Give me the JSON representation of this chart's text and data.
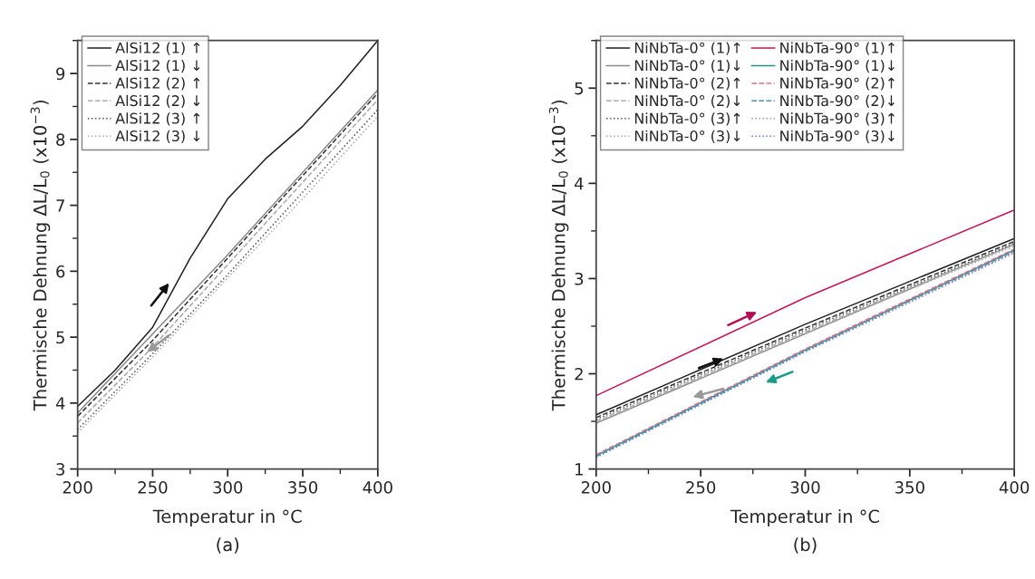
{
  "chart_data": [
    {
      "type": "line",
      "xlabel": "Temperatur in °C",
      "ylabel": "Thermische Dehnung ΔL/L$_{0}$ (x10$^{−3}$)",
      "xlim": [
        200,
        400
      ],
      "ylim": [
        3,
        9.5
      ],
      "xticks": [
        200,
        250,
        300,
        350,
        400
      ],
      "yticks": [
        3,
        4,
        5,
        6,
        7,
        8,
        9
      ],
      "legend": "top left",
      "grid": false,
      "annotations": [
        "(a)"
      ],
      "series": [
        {
          "name": "AlSi12 (1) ↑",
          "color": "#222222",
          "line_style": "solid",
          "x": [
            200,
            225,
            250,
            275,
            300,
            325,
            350,
            375,
            400
          ],
          "values": [
            3.95,
            4.5,
            5.15,
            6.2,
            7.1,
            7.7,
            8.2,
            8.82,
            9.5
          ]
        },
        {
          "name": "AlSi12 (1) ↓",
          "color": "#8a8a8a",
          "line_style": "solid",
          "x": [
            200,
            250,
            300,
            350,
            400
          ],
          "values": [
            3.85,
            5.05,
            6.25,
            7.5,
            8.75
          ]
        },
        {
          "name": "AlSi12 (2) ↑",
          "color": "#333333",
          "line_style": "dashed",
          "x": [
            200,
            250,
            300,
            350,
            400
          ],
          "values": [
            3.8,
            4.95,
            6.2,
            7.45,
            8.7
          ]
        },
        {
          "name": "AlSi12 (2) ↓",
          "color": "#aaaaaa",
          "line_style": "dashed",
          "x": [
            200,
            250,
            300,
            350,
            400
          ],
          "values": [
            3.7,
            4.85,
            6.1,
            7.35,
            8.6
          ]
        },
        {
          "name": "AlSi12 (3) ↑",
          "color": "#555555",
          "line_style": "dotted",
          "x": [
            200,
            250,
            300,
            350,
            400
          ],
          "values": [
            3.6,
            4.75,
            5.95,
            7.2,
            8.45
          ]
        },
        {
          "name": "AlSi12 (3) ↓",
          "color": "#aaaaaa",
          "line_style": "dotted",
          "x": [
            200,
            250,
            300,
            350,
            400
          ],
          "values": [
            3.55,
            4.7,
            5.9,
            7.1,
            8.35
          ]
        }
      ]
    },
    {
      "type": "line",
      "xlabel": "Temperatur in °C",
      "ylabel": "Thermische Dehnung ΔL/L$_{0}$ (x10$^{−3}$)",
      "xlim": [
        200,
        400
      ],
      "ylim": [
        1,
        5.5
      ],
      "xticks": [
        200,
        250,
        300,
        350,
        400
      ],
      "yticks": [
        1,
        2,
        3,
        4,
        5
      ],
      "legend": "top left",
      "grid": false,
      "annotations": [
        "(b)"
      ],
      "series": [
        {
          "name": "NiNbTa-0° (1)↑",
          "color": "#222222",
          "line_style": "solid",
          "x": [
            200,
            300,
            400
          ],
          "values": [
            1.57,
            2.52,
            3.42
          ]
        },
        {
          "name": "NiNbTa-0° (1)↓",
          "color": "#8a8a8a",
          "line_style": "solid",
          "x": [
            200,
            300,
            400
          ],
          "values": [
            1.48,
            2.42,
            3.36
          ]
        },
        {
          "name": "NiNbTa-0° (2)↑",
          "color": "#333333",
          "line_style": "dashed",
          "x": [
            200,
            300,
            400
          ],
          "values": [
            1.54,
            2.48,
            3.39
          ]
        },
        {
          "name": "NiNbTa-0° (2)↓",
          "color": "#aaaaaa",
          "line_style": "dashed",
          "x": [
            200,
            300,
            400
          ],
          "values": [
            1.5,
            2.44,
            3.36
          ]
        },
        {
          "name": "NiNbTa-0° (3)↑",
          "color": "#555555",
          "line_style": "dotted",
          "x": [
            200,
            300,
            400
          ],
          "values": [
            1.52,
            2.46,
            3.37
          ]
        },
        {
          "name": "NiNbTa-0° (3)↓",
          "color": "#aaaaaa",
          "line_style": "dotted",
          "x": [
            200,
            300,
            400
          ],
          "values": [
            1.49,
            2.43,
            3.34
          ]
        },
        {
          "name": "NiNbTa-90° (1)↑",
          "color": "#c2185b",
          "line_style": "solid",
          "x": [
            200,
            300,
            400
          ],
          "values": [
            1.77,
            2.8,
            3.72
          ]
        },
        {
          "name": "NiNbTa-90° (1)↓",
          "color": "#2a8f7f",
          "line_style": "solid",
          "x": [
            200,
            300,
            400
          ],
          "values": [
            1.14,
            2.25,
            3.3
          ]
        },
        {
          "name": "NiNbTa-90° (2)↑",
          "color": "#e07090",
          "line_style": "dashed",
          "x": [
            200,
            300,
            400
          ],
          "values": [
            1.15,
            2.26,
            3.31
          ]
        },
        {
          "name": "NiNbTa-90° (2)↓",
          "color": "#4f8fb0",
          "line_style": "dashed",
          "x": [
            200,
            300,
            400
          ],
          "values": [
            1.13,
            2.24,
            3.29
          ]
        },
        {
          "name": "NiNbTa-90° (3)↑",
          "color": "#b090a0",
          "line_style": "dotted",
          "x": [
            200,
            300,
            400
          ],
          "values": [
            1.15,
            2.25,
            3.28
          ]
        },
        {
          "name": "NiNbTa-90° (3)↓",
          "color": "#6a80c0",
          "line_style": "dotted",
          "x": [
            200,
            300,
            400
          ],
          "values": [
            1.12,
            2.23,
            3.27
          ]
        }
      ]
    }
  ]
}
